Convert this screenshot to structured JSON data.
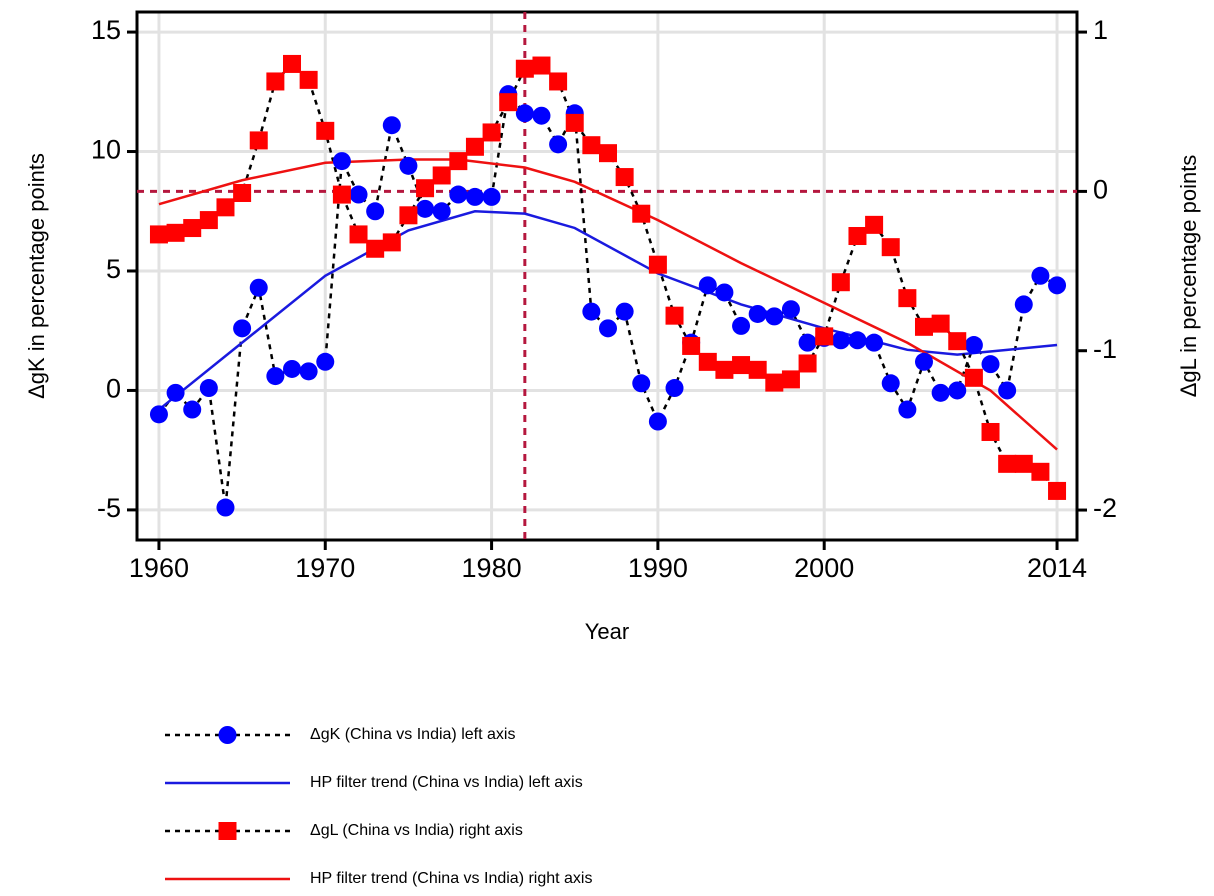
{
  "chart_data": {
    "type": "line",
    "x_label": "Year",
    "y_label": "ΔgK in percentage points",
    "y2_label": "ΔgL in percentage points",
    "x": [
      1960,
      1961,
      1962,
      1963,
      1964,
      1965,
      1966,
      1967,
      1968,
      1969,
      1970,
      1971,
      1972,
      1973,
      1974,
      1975,
      1976,
      1977,
      1978,
      1979,
      1980,
      1981,
      1982,
      1983,
      1984,
      1985,
      1986,
      1987,
      1988,
      1989,
      1990,
      1991,
      1992,
      1993,
      1994,
      1995,
      1996,
      1997,
      1998,
      1999,
      2000,
      2001,
      2002,
      2003,
      2004,
      2005,
      2006,
      2007,
      2008,
      2009,
      2010,
      2011,
      2012,
      2013,
      2014
    ],
    "xlim": [
      1958.68,
      2015.2
    ],
    "xticks": [
      1960,
      1970,
      1980,
      1990,
      2000,
      2014
    ],
    "ylim": [
      -6.26,
      15.84
    ],
    "yticks": [
      15,
      10,
      5,
      0,
      -5
    ],
    "y2lim": [
      -2.188,
      1.126
    ],
    "y2ticks": [
      1,
      0,
      -1,
      -2
    ],
    "grid": true,
    "reference_lines": {
      "color": "#b5173e",
      "y2": 0,
      "x": 1982
    },
    "series": [
      {
        "name": "ΔgK (China vs India) left axis",
        "color": "#0000ff",
        "line_color": "#000000",
        "line_style": "dashed",
        "marker": "circle",
        "axis": "y",
        "values": [
          -1.0,
          -0.1,
          -0.8,
          0.1,
          -4.9,
          2.6,
          4.3,
          0.6,
          0.9,
          0.8,
          1.2,
          9.6,
          8.2,
          7.5,
          11.1,
          9.4,
          7.6,
          7.5,
          8.2,
          8.1,
          8.1,
          12.4,
          11.6,
          11.5,
          10.3,
          11.6,
          3.3,
          2.6,
          3.3,
          0.3,
          -1.3,
          0.1,
          2.0,
          4.4,
          4.1,
          2.7,
          3.2,
          3.1,
          3.4,
          2.0,
          2.2,
          2.1,
          2.1,
          2.0,
          0.3,
          -0.8,
          1.2,
          -0.1,
          0.0,
          1.9,
          1.1,
          0.0,
          3.6,
          4.8,
          4.4
        ]
      },
      {
        "name": "HP filter trend (China vs India) left axis",
        "color": "#1a1adf",
        "line_style": "solid",
        "axis": "y",
        "x": [
          1960,
          1965,
          1970,
          1975,
          1979,
          1982,
          1985,
          1990,
          1995,
          2000,
          2005,
          2008,
          2011,
          2014
        ],
        "values": [
          -0.8,
          2.0,
          4.8,
          6.7,
          7.5,
          7.4,
          6.8,
          4.9,
          3.6,
          2.6,
          1.7,
          1.5,
          1.7,
          1.9
        ]
      },
      {
        "name": "ΔgL (China vs India) right axis",
        "color": "#ff0000",
        "line_color": "#000000",
        "line_style": "dashed",
        "marker": "square",
        "axis": "y2",
        "values": [
          -0.27,
          -0.26,
          -0.23,
          -0.18,
          -0.1,
          -0.01,
          0.32,
          0.69,
          0.8,
          0.7,
          0.38,
          -0.02,
          -0.27,
          -0.36,
          -0.32,
          -0.15,
          0.02,
          0.1,
          0.19,
          0.28,
          0.37,
          0.56,
          0.77,
          0.79,
          0.69,
          0.43,
          0.29,
          0.24,
          0.09,
          -0.14,
          -0.46,
          -0.78,
          -0.97,
          -1.07,
          -1.12,
          -1.09,
          -1.12,
          -1.2,
          -1.18,
          -1.08,
          -0.91,
          -0.57,
          -0.28,
          -0.21,
          -0.35,
          -0.67,
          -0.85,
          -0.83,
          -0.94,
          -1.17,
          -1.51,
          -1.71,
          -1.71,
          -1.76,
          -1.88
        ]
      },
      {
        "name": "HP filter trend (China vs India) right axis",
        "color": "#ee1111",
        "line_style": "solid",
        "axis": "y2",
        "x": [
          1960,
          1965,
          1970,
          1975,
          1978,
          1982,
          1985,
          1990,
          1995,
          2000,
          2005,
          2010,
          2014
        ],
        "values": [
          -0.08,
          0.07,
          0.18,
          0.2,
          0.2,
          0.15,
          0.06,
          -0.18,
          -0.45,
          -0.7,
          -0.95,
          -1.25,
          -1.62
        ]
      }
    ]
  }
}
